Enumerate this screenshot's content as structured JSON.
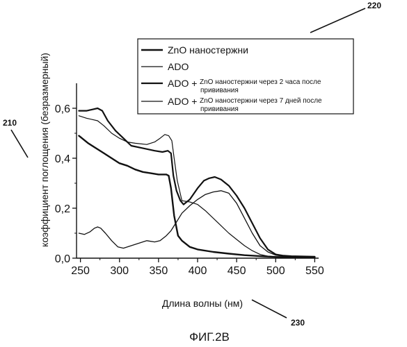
{
  "figure": {
    "caption": "ФИГ.2В",
    "ref_labels": [
      "220",
      "210",
      "230"
    ]
  },
  "chart_data": {
    "type": "line",
    "title": "",
    "xlabel": "Длина волны (нм)",
    "ylabel": "коэффициент поглощения (безразмерный)",
    "xlim": [
      245,
      555
    ],
    "ylim": [
      0,
      0.7
    ],
    "x_ticks": [
      250,
      300,
      350,
      400,
      450,
      500,
      550
    ],
    "x_tick_labels": [
      "250",
      "300",
      "350",
      "400",
      "450",
      "500",
      "550"
    ],
    "y_ticks": [
      0,
      0.2,
      0.4,
      0.6
    ],
    "y_tick_labels": [
      "0,0",
      "0,2",
      "0,4",
      "0,6"
    ],
    "grid": false,
    "legend_position": "top-right",
    "legend": [
      {
        "prefix": "",
        "text": "ZnO наностержни",
        "continuation": ""
      },
      {
        "prefix": "",
        "text": "ADO",
        "continuation": ""
      },
      {
        "prefix": "ADO +",
        "text": "ZnO наностержни через 2 часа после",
        "continuation": "прививания"
      },
      {
        "prefix": "ADO +",
        "text": "ZnO наностержни через 7 дней после",
        "continuation": "прививания"
      }
    ],
    "series": [
      {
        "name": "ZnO наностержни",
        "color": "#111111",
        "width": 2.4,
        "x": [
          248,
          260,
          270,
          280,
          290,
          300,
          310,
          320,
          330,
          340,
          350,
          360,
          363,
          366,
          370,
          375,
          380,
          390,
          400,
          420,
          440,
          460,
          480,
          500,
          520,
          550
        ],
        "y": [
          0.49,
          0.46,
          0.44,
          0.42,
          0.4,
          0.38,
          0.37,
          0.355,
          0.345,
          0.34,
          0.335,
          0.335,
          0.33,
          0.28,
          0.17,
          0.09,
          0.07,
          0.045,
          0.035,
          0.025,
          0.018,
          0.012,
          0.008,
          0.005,
          0.004,
          0.003
        ]
      },
      {
        "name": "ADO",
        "color": "#111111",
        "width": 1.3,
        "x": [
          248,
          255,
          262,
          268,
          272,
          276,
          282,
          290,
          298,
          305,
          315,
          325,
          335,
          345,
          352,
          360,
          366,
          372,
          380,
          390,
          400,
          410,
          420,
          430,
          440,
          450,
          460,
          470,
          480,
          490,
          500,
          510,
          520,
          550
        ],
        "y": [
          0.1,
          0.095,
          0.105,
          0.12,
          0.125,
          0.12,
          0.1,
          0.07,
          0.045,
          0.04,
          0.05,
          0.06,
          0.07,
          0.065,
          0.07,
          0.09,
          0.11,
          0.14,
          0.18,
          0.21,
          0.235,
          0.255,
          0.265,
          0.27,
          0.26,
          0.22,
          0.16,
          0.1,
          0.05,
          0.025,
          0.012,
          0.008,
          0.006,
          0.005
        ]
      },
      {
        "name": "ADO + ZnO наностержни через 2 часа после прививания",
        "color": "#111111",
        "width": 2.2,
        "x": [
          248,
          258,
          265,
          272,
          278,
          285,
          295,
          305,
          315,
          330,
          345,
          355,
          362,
          366,
          369,
          373,
          378,
          382,
          390,
          400,
          408,
          415,
          422,
          430,
          440,
          450,
          460,
          470,
          480,
          490,
          500,
          510,
          520,
          550
        ],
        "y": [
          0.59,
          0.59,
          0.595,
          0.6,
          0.59,
          0.55,
          0.51,
          0.48,
          0.45,
          0.44,
          0.43,
          0.425,
          0.43,
          0.42,
          0.33,
          0.27,
          0.23,
          0.215,
          0.235,
          0.28,
          0.31,
          0.32,
          0.325,
          0.315,
          0.29,
          0.25,
          0.2,
          0.14,
          0.08,
          0.035,
          0.015,
          0.01,
          0.008,
          0.006
        ]
      },
      {
        "name": "ADO + ZnO наностержни через 7 дней после прививания",
        "color": "#111111",
        "width": 1.2,
        "x": [
          248,
          258,
          265,
          272,
          280,
          290,
          300,
          310,
          320,
          335,
          345,
          352,
          358,
          363,
          367,
          370,
          374,
          380,
          390,
          400,
          410,
          420,
          430,
          440,
          450,
          460,
          470,
          480,
          490,
          500,
          510,
          520,
          550
        ],
        "y": [
          0.57,
          0.56,
          0.555,
          0.55,
          0.53,
          0.5,
          0.48,
          0.465,
          0.46,
          0.455,
          0.465,
          0.48,
          0.495,
          0.49,
          0.47,
          0.4,
          0.31,
          0.23,
          0.225,
          0.215,
          0.19,
          0.16,
          0.13,
          0.1,
          0.075,
          0.05,
          0.03,
          0.015,
          0.008,
          0.005,
          0.004,
          0.003,
          0.002
        ]
      }
    ]
  }
}
